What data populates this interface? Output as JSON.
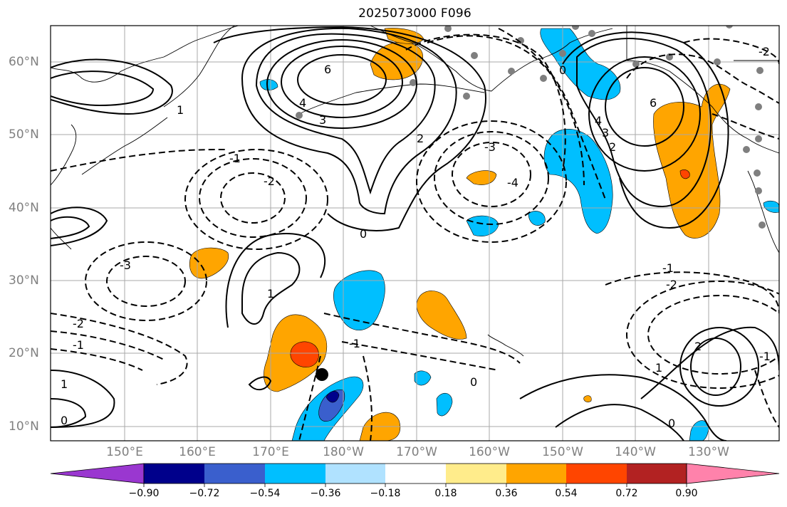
{
  "title": "2025073000 F096",
  "lat_labels": [
    "60°N",
    "50°N",
    "40°N",
    "30°N",
    "20°N",
    "10°N"
  ],
  "lon_labels": [
    "150°E",
    "160°E",
    "170°E",
    "180°W",
    "170°W",
    "160°W",
    "150°W",
    "140°W",
    "130°W"
  ],
  "colorbar": {
    "colors": [
      "#9a37d0",
      "#00008b",
      "#3a5fcd",
      "#00bfff",
      "#b0e2ff",
      "#ffffff",
      "#ffec8b",
      "#ffa500",
      "#ff4500",
      "#b22222",
      "#ff82ab"
    ],
    "tick_labels": [
      "−0.90",
      "−0.72",
      "−0.54",
      "−0.36",
      "−0.18",
      "0.18",
      "0.36",
      "0.54",
      "0.72",
      "0.90"
    ]
  },
  "contour_labels": [
    "6",
    "4",
    "3",
    "1",
    "2",
    "0",
    "-1",
    "-2",
    "-3",
    "-4",
    "6",
    "4",
    "3",
    "2",
    "0",
    "-1",
    "-2",
    "-1",
    "0",
    "-2",
    "-1",
    "-3",
    "2",
    "1",
    "1",
    "0",
    "-2",
    "-1",
    "1",
    "0"
  ]
}
